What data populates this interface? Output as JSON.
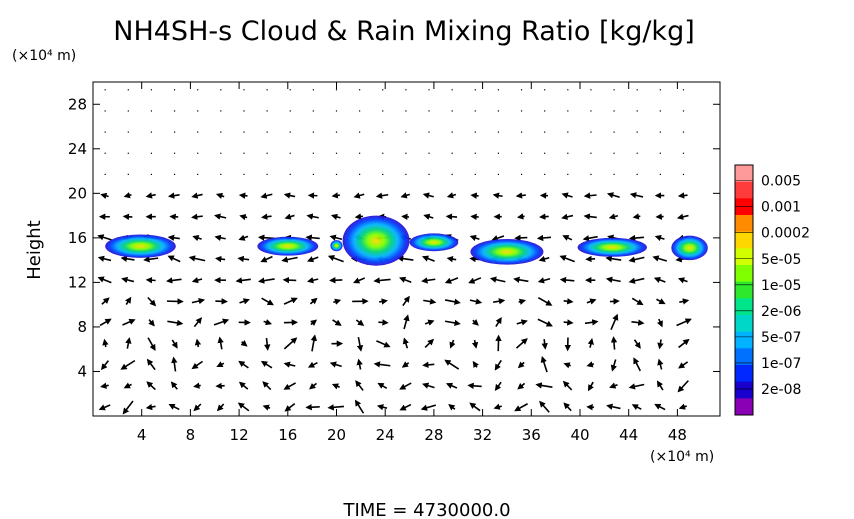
{
  "chart_data": {
    "type": "heatmap",
    "title": "NH4SH-s Cloud & Rain Mixing Ratio [kg/kg]",
    "ylabel": "Height",
    "y_unit_label": "(×10⁴ m)",
    "x_unit_label": "(×10⁴ m)",
    "footer": "TIME  =  4730000.0",
    "xlim": [
      0,
      51.5
    ],
    "ylim": [
      0,
      30
    ],
    "x_ticks": [
      4,
      8,
      12,
      16,
      20,
      24,
      28,
      32,
      36,
      40,
      44,
      48
    ],
    "y_ticks": [
      4,
      8,
      12,
      16,
      20,
      24,
      28
    ],
    "colorbar": {
      "labels": [
        "0.005",
        "0.001",
        "0.0002",
        "5e-05",
        "1e-05",
        "2e-06",
        "5e-07",
        "1e-07",
        "2e-08"
      ],
      "colors": [
        "#ff9a9a",
        "#ff3c3c",
        "#ff0000",
        "#ff8c00",
        "#ffd700",
        "#d2ff00",
        "#7fff00",
        "#2ee82e",
        "#00e58a",
        "#00d7c9",
        "#00b2ff",
        "#0070ff",
        "#0028ff",
        "#1a00cc",
        "#8a00b4"
      ]
    },
    "cloud_blobs": [
      {
        "x_range": [
          1.0,
          6.8
        ],
        "y_range": [
          14.2,
          16.3
        ]
      },
      {
        "x_range": [
          13.5,
          18.5
        ],
        "y_range": [
          14.4,
          16.1
        ]
      },
      {
        "x_range": [
          19.5,
          20.5
        ],
        "y_range": [
          14.8,
          15.8
        ]
      },
      {
        "x_range": [
          20.5,
          26.0
        ],
        "y_range": [
          13.5,
          18.0
        ]
      },
      {
        "x_range": [
          26.0,
          30.0
        ],
        "y_range": [
          14.8,
          16.4
        ]
      },
      {
        "x_range": [
          31.0,
          37.0
        ],
        "y_range": [
          13.6,
          15.9
        ]
      },
      {
        "x_range": [
          39.8,
          45.5
        ],
        "y_range": [
          14.3,
          16.0
        ]
      },
      {
        "x_range": [
          47.5,
          50.5
        ],
        "y_range": [
          14.0,
          16.2
        ]
      }
    ],
    "vectors": "wind arrow field on regular grid (direction/magnitude not labeled)"
  }
}
